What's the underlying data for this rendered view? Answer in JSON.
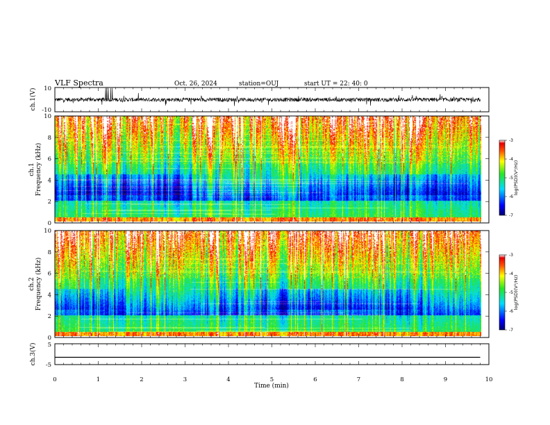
{
  "header": {
    "title": "VLF Spectra",
    "date": "Oct. 26, 2024",
    "station": "station=OUJ",
    "start": "start  UT  =   22: 40: 0"
  },
  "chart_data": [
    {
      "type": "line",
      "name": "waveform-ch1",
      "ylabel": "ch.1(V)",
      "ylim": [
        -10,
        10
      ],
      "yticks": [
        "10",
        "-10"
      ],
      "mean": 0,
      "note_noise": "noisy trace around 0 V with spikes to about 10 V near 1.1-1.3 min"
    },
    {
      "type": "heatmap",
      "name": "spectrogram-ch1",
      "ylabel": "ch.1",
      "ylabel2": "Frequency  (kHz)",
      "ylim": [
        0,
        10
      ],
      "yticks": [
        "0",
        "2",
        "4",
        "6",
        "8",
        "10"
      ],
      "colorbar": {
        "label": "log(PSD)(V²/Hz)",
        "range": [
          -7,
          -3
        ],
        "ticks": [
          "-3",
          "-4",
          "-5",
          "-6",
          "-7"
        ]
      }
    },
    {
      "type": "heatmap",
      "name": "spectrogram-ch2",
      "ylabel": "ch.2",
      "ylabel2": "Frequency  (kHz)",
      "ylim": [
        0,
        10
      ],
      "yticks": [
        "0",
        "2",
        "4",
        "6",
        "8",
        "10"
      ],
      "colorbar": {
        "label": "log(PSD)(V²/Hz)",
        "range": [
          -7,
          -3
        ],
        "ticks": [
          "-3",
          "-4",
          "-5",
          "-6",
          "-7"
        ]
      }
    },
    {
      "type": "line",
      "name": "waveform-ch3",
      "ylabel": "ch.3(V)",
      "ylim": [
        -5,
        5
      ],
      "yticks": [
        "5",
        "0",
        "-5"
      ],
      "x": [
        0,
        9.8
      ],
      "y": [
        -1.5,
        -1.5
      ]
    }
  ],
  "xaxis": {
    "label": "Time  (min)",
    "range": [
      0,
      10
    ],
    "ticks": [
      "0",
      "1",
      "2",
      "3",
      "4",
      "5",
      "6",
      "7",
      "8",
      "9",
      "10"
    ],
    "data_end": 9.8
  },
  "colors": {
    "trace": "#000000",
    "axes": "#000000"
  }
}
